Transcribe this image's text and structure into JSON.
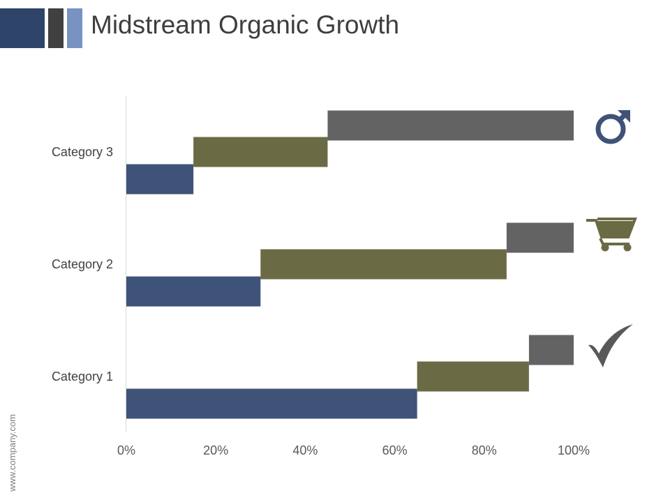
{
  "slide": {
    "title": "Midstream Organic Growth",
    "footer": "www.company.com",
    "header_colors": [
      "#2e4468",
      "#404040",
      "#7892c2"
    ]
  },
  "chart_data": {
    "type": "bar",
    "orientation": "horizontal",
    "stacked": true,
    "categories": [
      "Category 1",
      "Category 2",
      "Category 3"
    ],
    "series": [
      {
        "values": [
          65,
          30,
          15
        ],
        "color": "#3f5378"
      },
      {
        "values": [
          25,
          55,
          30
        ],
        "color": "#6a6b45"
      },
      {
        "values": [
          10,
          15,
          55
        ],
        "color": "#636363"
      }
    ],
    "x_ticks": [
      "0%",
      "20%",
      "40%",
      "60%",
      "80%",
      "100%"
    ],
    "xlim": [
      0,
      100
    ],
    "grid": false,
    "legend": "none",
    "category_icons": [
      {
        "category": "Category 1",
        "icon": "checkmark-icon",
        "color": "#595959"
      },
      {
        "category": "Category 2",
        "icon": "shopping-cart-icon",
        "color": "#6a6b45"
      },
      {
        "category": "Category 3",
        "icon": "male-symbol-icon",
        "color": "#3f5378"
      }
    ]
  }
}
